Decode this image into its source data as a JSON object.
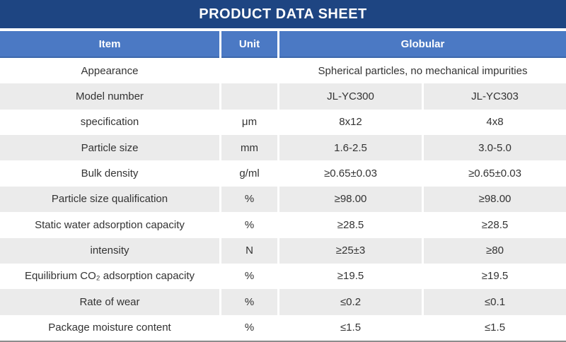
{
  "title": "PRODUCT DATA SHEET",
  "colors": {
    "title_bar": "#1E4582",
    "header_row": "#4B79C4",
    "alt_row": "#EBEBEB",
    "body_text": "#333333",
    "bottom_border": "#8C8C8C"
  },
  "table": {
    "headers": {
      "item": "Item",
      "unit": "Unit",
      "group": "Globular"
    },
    "rows": [
      {
        "item": "Appearance",
        "unit": "",
        "span": "Spherical particles, no mechanical impurities"
      },
      {
        "item": "Model number",
        "unit": "",
        "values": [
          "JL-YC300",
          "JL-YC303"
        ]
      },
      {
        "item": "specification",
        "unit": "μm",
        "values": [
          "8x12",
          "4x8"
        ]
      },
      {
        "item": "Particle size",
        "unit": "mm",
        "values": [
          "1.6-2.5",
          "3.0-5.0"
        ]
      },
      {
        "item": "Bulk density",
        "unit": "g/ml",
        "values": [
          "≥0.65±0.03",
          "≥0.65±0.03"
        ]
      },
      {
        "item": "Particle size qualification",
        "unit": "%",
        "values": [
          "≥98.00",
          "≥98.00"
        ]
      },
      {
        "item": "Static water adsorption capacity",
        "unit": "%",
        "values": [
          "≥28.5",
          "≥28.5"
        ]
      },
      {
        "item": "intensity",
        "unit": "N",
        "values": [
          "≥25±3",
          "≥80"
        ]
      },
      {
        "item": "Equilibrium CO₂ adsorption capacity",
        "unit": "%",
        "values": [
          "≥19.5",
          "≥19.5"
        ]
      },
      {
        "item": "Rate of wear",
        "unit": "%",
        "values": [
          "≤0.2",
          "≤0.1"
        ]
      },
      {
        "item": "Package moisture content",
        "unit": "%",
        "values": [
          "≤1.5",
          "≤1.5"
        ]
      }
    ]
  }
}
